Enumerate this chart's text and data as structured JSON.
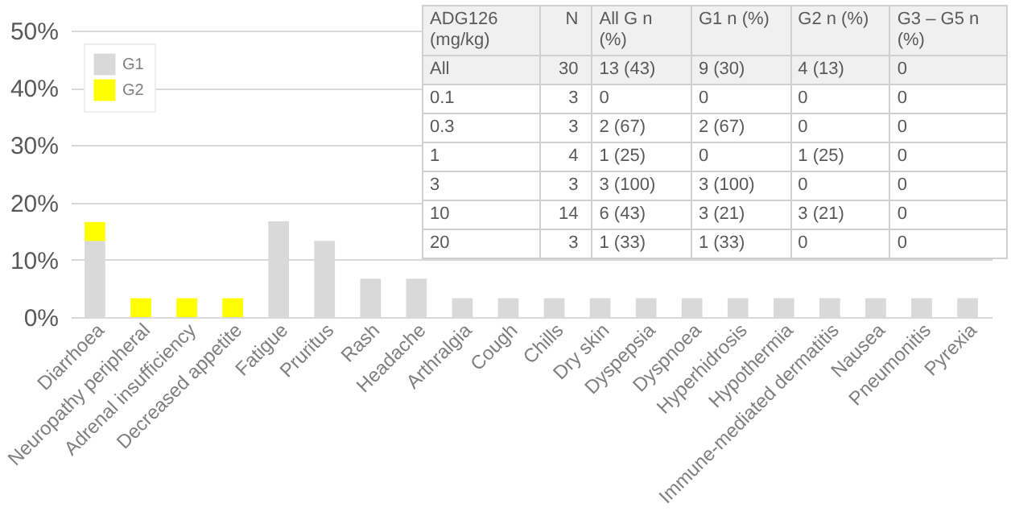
{
  "chart_data": {
    "type": "bar",
    "stacked": true,
    "categories": [
      "Diarrhoea",
      "Neuropathy peripheral",
      "Adrenal insufficiency",
      "Decreased appetite",
      "Fatigue",
      "Pruritus",
      "Rash",
      "Headache",
      "Arthralgia",
      "Cough",
      "Chills",
      "Dry skin",
      "Dyspepsia",
      "Dyspnoea",
      "Hyperhidrosis",
      "Hypothermia",
      "Immune-mediated dermatitis",
      "Nausea",
      "Pneumonitis",
      "Pyrexia"
    ],
    "series": [
      {
        "name": "G1",
        "color": "#d9d9d9",
        "values": [
          13.3,
          null,
          null,
          null,
          16.7,
          13.3,
          6.7,
          6.7,
          3.3,
          3.3,
          3.3,
          3.3,
          3.3,
          3.3,
          3.3,
          3.3,
          3.3,
          3.3,
          3.3,
          3.3
        ]
      },
      {
        "name": "G2",
        "color": "#ffff00",
        "values": [
          3.3,
          3.3,
          3.3,
          3.3,
          null,
          null,
          null,
          null,
          null,
          null,
          null,
          null,
          null,
          null,
          null,
          null,
          null,
          null,
          null,
          null
        ]
      }
    ],
    "ylim": [
      0,
      50
    ],
    "yticks": [
      {
        "value": 0,
        "label": "0%"
      },
      {
        "value": 10,
        "label": "10%"
      },
      {
        "value": 20,
        "label": "20%"
      },
      {
        "value": 30,
        "label": "30%"
      },
      {
        "value": 40,
        "label": "40%"
      },
      {
        "value": 50,
        "label": "50%"
      }
    ],
    "grid": "y",
    "legend": "top left",
    "annotations": [
      "ADG126 (mg/kg)",
      "N",
      "All G n (%)",
      "G1 n (%)",
      "G2 n (%)",
      "G3 – G5 n (%)",
      "All",
      "30",
      "13 (43)",
      "9 (30)",
      "4 (13)",
      "0",
      "0.1",
      "3",
      "0",
      "0",
      "0",
      "0",
      "0.3",
      "3",
      "2 (67)",
      "2 (67)",
      "0",
      "0",
      "1",
      "4",
      "1 (25)",
      "0",
      "1 (25)",
      "0",
      "3",
      "3",
      "3 (100)",
      "3 (100)",
      "0",
      "0",
      "10",
      "14",
      "6 (43)",
      "3 (21)",
      "3 (21)",
      "0",
      "20",
      "3",
      "1 (33)",
      "1 (33)",
      "0",
      "0"
    ]
  }
}
